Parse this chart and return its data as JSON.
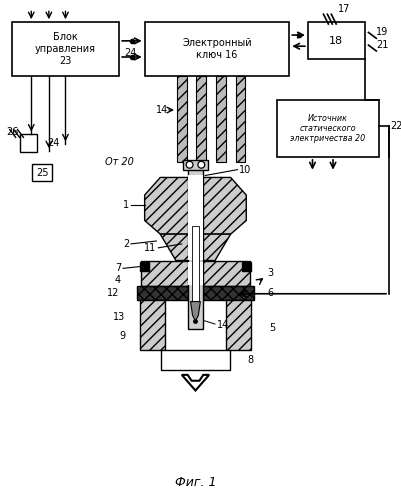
{
  "title": "Фиг. 1",
  "bg_color": "#ffffff",
  "label_bu": "Блок\nуправления\n23",
  "label_ek": "Электронный\nключ 16",
  "label_is": "Источник\nстатического\nэлектричества 20",
  "label_18": "18",
  "figsize": [
    4.01,
    5.0
  ],
  "dpi": 100
}
